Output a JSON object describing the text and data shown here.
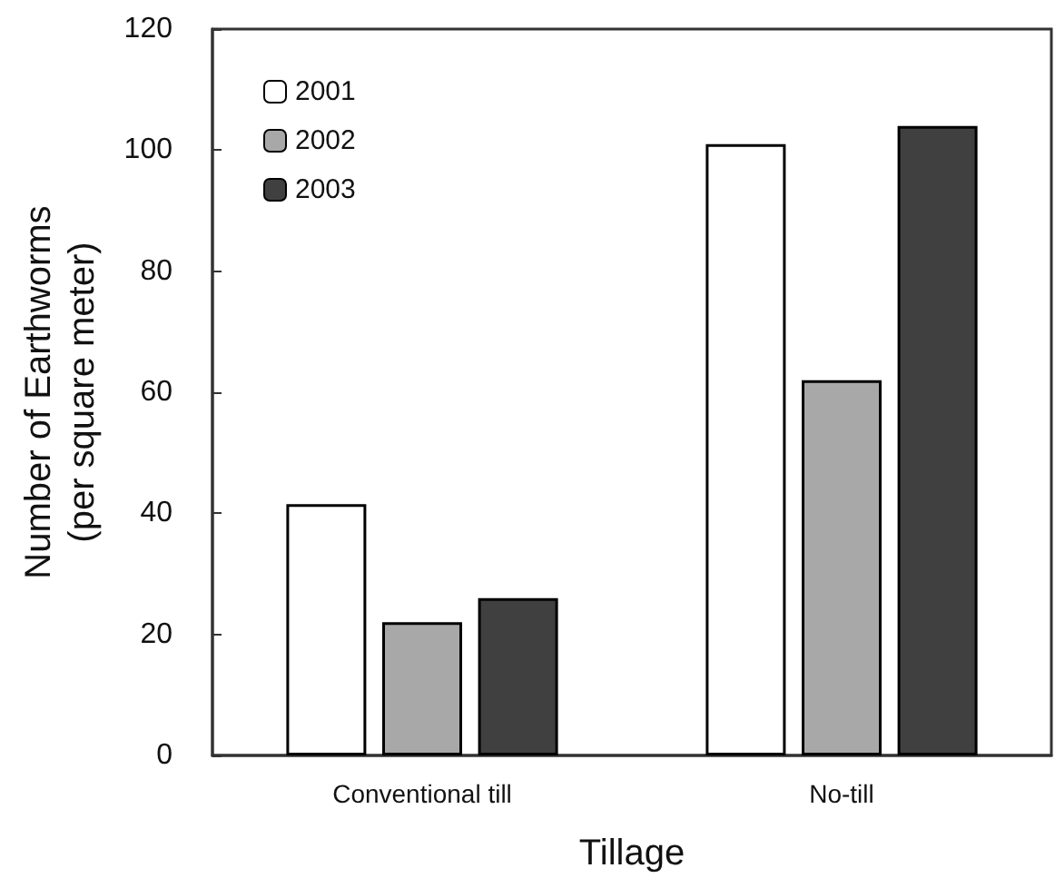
{
  "chart_data": {
    "type": "bar",
    "xlabel": "Tillage",
    "ylabel": "Number of Earthworms\n(per square meter)",
    "categories": [
      "Conventional till",
      "No-till"
    ],
    "series": [
      {
        "name": "2001",
        "color": "#ffffff",
        "values": [
          41.5,
          101
        ]
      },
      {
        "name": "2002",
        "color": "#a8a8a8",
        "values": [
          22,
          62
        ]
      },
      {
        "name": "2003",
        "color": "#404040",
        "values": [
          26,
          104
        ]
      }
    ],
    "ylim": [
      0,
      120
    ],
    "yticks": [
      0,
      20,
      40,
      60,
      80,
      100,
      120
    ],
    "grid": false,
    "legend": "top left"
  }
}
